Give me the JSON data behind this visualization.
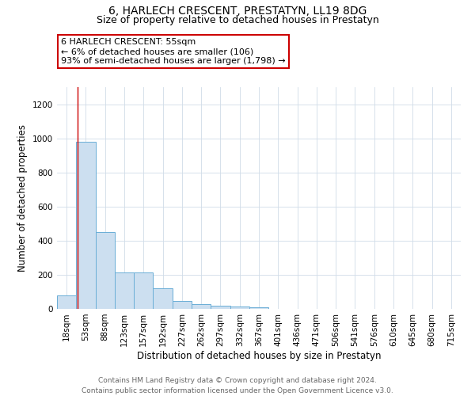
{
  "title": "6, HARLECH CRESCENT, PRESTATYN, LL19 8DG",
  "subtitle": "Size of property relative to detached houses in Prestatyn",
  "xlabel": "Distribution of detached houses by size in Prestatyn",
  "ylabel": "Number of detached properties",
  "footer_line1": "Contains HM Land Registry data © Crown copyright and database right 2024.",
  "footer_line2": "Contains public sector information licensed under the Open Government Licence v3.0.",
  "bar_labels": [
    "18sqm",
    "53sqm",
    "88sqm",
    "123sqm",
    "157sqm",
    "192sqm",
    "227sqm",
    "262sqm",
    "297sqm",
    "332sqm",
    "367sqm",
    "401sqm",
    "436sqm",
    "471sqm",
    "506sqm",
    "541sqm",
    "576sqm",
    "610sqm",
    "645sqm",
    "680sqm",
    "715sqm"
  ],
  "bar_values": [
    80,
    980,
    450,
    215,
    215,
    120,
    45,
    30,
    20,
    15,
    8,
    0,
    0,
    0,
    0,
    0,
    0,
    0,
    0,
    0,
    0
  ],
  "bar_color": "#ccdff0",
  "bar_edge_color": "#6aaed6",
  "annotation_line1": "6 HARLECH CRESCENT: 55sqm",
  "annotation_line2": "← 6% of detached houses are smaller (106)",
  "annotation_line3": "93% of semi-detached houses are larger (1,798) →",
  "annotation_box_color": "#ffffff",
  "annotation_box_edge_color": "#cc0000",
  "vline_color": "#cc0000",
  "ylim": [
    0,
    1300
  ],
  "yticks": [
    0,
    200,
    400,
    600,
    800,
    1000,
    1200
  ],
  "grid_color": "#d0dce8",
  "background_color": "#ffffff",
  "title_fontsize": 10,
  "subtitle_fontsize": 9,
  "axis_label_fontsize": 8.5,
  "tick_fontsize": 7.5,
  "annotation_fontsize": 8,
  "footer_fontsize": 6.5
}
